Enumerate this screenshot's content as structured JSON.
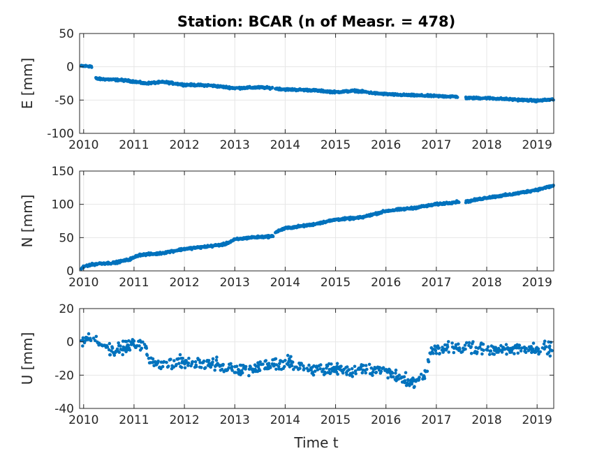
{
  "figure": {
    "title": "Station: BCAR (n of Measr. = 478)",
    "xlabel": "Time t",
    "marker_color": "#0072BD",
    "grid_color": "#e6e6e6"
  },
  "chart_data": [
    {
      "type": "scatter",
      "name": "east",
      "ylabel": "E [mm]",
      "xlim": [
        2009.92,
        2019.33
      ],
      "ylim": [
        -100,
        50
      ],
      "xticks": [
        2010,
        2011,
        2012,
        2013,
        2014,
        2015,
        2016,
        2017,
        2018,
        2019
      ],
      "yticks": [
        -100,
        -50,
        0,
        50
      ],
      "grid": true,
      "anchors": [
        [
          2009.95,
          1
        ],
        [
          2010.15,
          1
        ],
        [
          2010.25,
          -18
        ],
        [
          2010.75,
          -20
        ],
        [
          2011.0,
          -22
        ],
        [
          2011.2,
          -25
        ],
        [
          2011.6,
          -23
        ],
        [
          2012.0,
          -27
        ],
        [
          2012.5,
          -28
        ],
        [
          2013.0,
          -32
        ],
        [
          2013.5,
          -31
        ],
        [
          2013.75,
          -32
        ],
        [
          2014.0,
          -34
        ],
        [
          2014.5,
          -35
        ],
        [
          2015.0,
          -38
        ],
        [
          2015.4,
          -36
        ],
        [
          2015.8,
          -40
        ],
        [
          2016.2,
          -42
        ],
        [
          2016.6,
          -43
        ],
        [
          2017.0,
          -44
        ],
        [
          2017.45,
          -45
        ],
        [
          2017.6,
          -47
        ],
        [
          2018.0,
          -47
        ],
        [
          2018.5,
          -49
        ],
        [
          2019.0,
          -51
        ],
        [
          2019.33,
          -49
        ]
      ],
      "gaps": [
        [
          2010.16,
          2010.24
        ],
        [
          2013.75,
          2013.8
        ],
        [
          2017.42,
          2017.58
        ]
      ],
      "noise": 1.3
    },
    {
      "type": "scatter",
      "name": "north",
      "ylabel": "N [mm]",
      "xlim": [
        2009.92,
        2019.33
      ],
      "ylim": [
        0,
        150
      ],
      "xticks": [
        2010,
        2011,
        2012,
        2013,
        2014,
        2015,
        2016,
        2017,
        2018,
        2019
      ],
      "yticks": [
        0,
        50,
        100,
        150
      ],
      "grid": true,
      "anchors": [
        [
          2009.95,
          3
        ],
        [
          2010.05,
          8
        ],
        [
          2010.3,
          11
        ],
        [
          2010.6,
          12
        ],
        [
          2010.9,
          17
        ],
        [
          2011.0,
          20
        ],
        [
          2011.1,
          24
        ],
        [
          2011.5,
          26
        ],
        [
          2012.0,
          33
        ],
        [
          2012.5,
          37
        ],
        [
          2012.8,
          40
        ],
        [
          2013.0,
          47
        ],
        [
          2013.3,
          50
        ],
        [
          2013.75,
          52
        ],
        [
          2013.8,
          58
        ],
        [
          2014.0,
          64
        ],
        [
          2014.5,
          69
        ],
        [
          2015.0,
          77
        ],
        [
          2015.5,
          80
        ],
        [
          2016.0,
          90
        ],
        [
          2016.5,
          94
        ],
        [
          2017.0,
          100
        ],
        [
          2017.45,
          104
        ],
        [
          2017.6,
          104
        ],
        [
          2018.0,
          110
        ],
        [
          2018.5,
          115
        ],
        [
          2019.0,
          122
        ],
        [
          2019.33,
          128
        ]
      ],
      "gaps": [
        [
          2013.76,
          2013.8
        ],
        [
          2017.45,
          2017.58
        ]
      ],
      "noise": 1.4
    },
    {
      "type": "scatter",
      "name": "up",
      "ylabel": "U [mm]",
      "xlim": [
        2009.92,
        2019.33
      ],
      "ylim": [
        -40,
        20
      ],
      "xticks": [
        2010,
        2011,
        2012,
        2013,
        2014,
        2015,
        2016,
        2017,
        2018,
        2019
      ],
      "yticks": [
        -40,
        -20,
        0,
        20
      ],
      "grid": true,
      "anchors": [
        [
          2009.95,
          0
        ],
        [
          2010.1,
          2
        ],
        [
          2010.4,
          -3
        ],
        [
          2010.6,
          -6
        ],
        [
          2011.0,
          -1
        ],
        [
          2011.2,
          0
        ],
        [
          2011.3,
          -12
        ],
        [
          2011.6,
          -13
        ],
        [
          2012.0,
          -12
        ],
        [
          2012.5,
          -13
        ],
        [
          2013.0,
          -17
        ],
        [
          2013.5,
          -15
        ],
        [
          2014.0,
          -12
        ],
        [
          2014.5,
          -17
        ],
        [
          2015.0,
          -16
        ],
        [
          2015.5,
          -17
        ],
        [
          2016.0,
          -17
        ],
        [
          2016.3,
          -21
        ],
        [
          2016.5,
          -25
        ],
        [
          2016.8,
          -20
        ],
        [
          2016.9,
          -4
        ],
        [
          2017.2,
          -4
        ],
        [
          2017.6,
          -3
        ],
        [
          2018.0,
          -5
        ],
        [
          2018.3,
          -4
        ],
        [
          2018.6,
          -4
        ],
        [
          2019.0,
          -5
        ],
        [
          2019.33,
          -4
        ]
      ],
      "gaps": [],
      "noise": 3.2
    }
  ]
}
